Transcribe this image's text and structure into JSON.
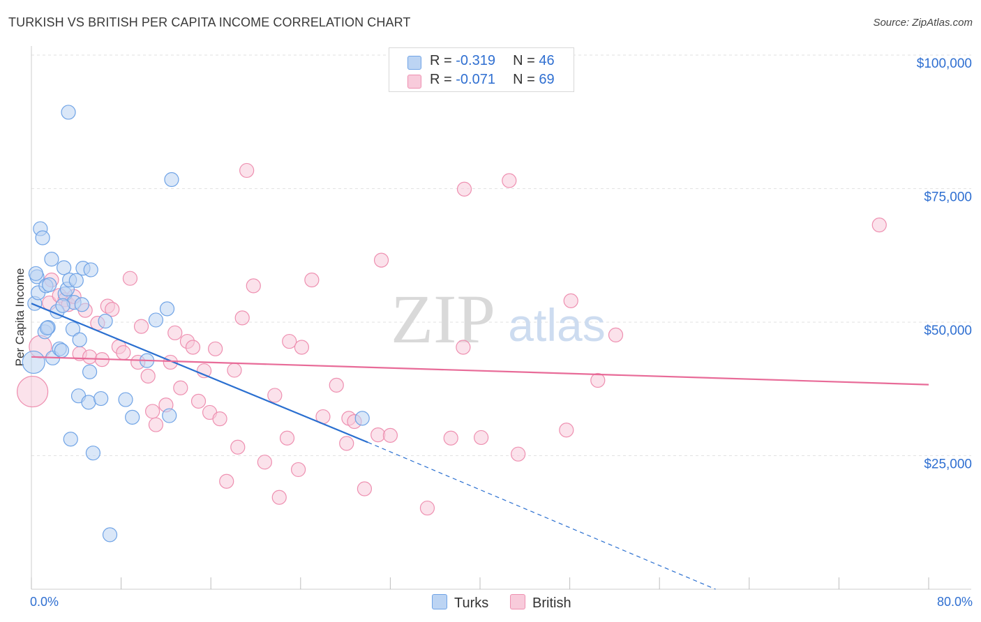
{
  "title": "TURKISH VS BRITISH PER CAPITA INCOME CORRELATION CHART",
  "source": "Source: ZipAtlas.com",
  "watermark": {
    "zip": "ZIP",
    "atlas": "atlas"
  },
  "colors": {
    "turks": "#6fa3e6",
    "turks_fill": "#bcd4f3",
    "turks_line": "#2a6fd0",
    "british": "#ee8fb0",
    "british_fill": "#f8cbdb",
    "british_line": "#e86b98",
    "axis_label": "#2f6fd1"
  },
  "legend": {
    "turks": {
      "r_label": "R = ",
      "r_value": "-0.319",
      "n_label": "N = ",
      "n_value": "46"
    },
    "british": {
      "r_label": "R = ",
      "r_value": "-0.071",
      "n_label": "N = ",
      "n_value": "69"
    }
  },
  "bottom_legend": {
    "turks": "Turks",
    "british": "British"
  },
  "chart_data": {
    "type": "scatter",
    "title": "TURKISH VS BRITISH PER CAPITA INCOME CORRELATION CHART",
    "xlabel": "",
    "ylabel": "Per Capita Income",
    "xlim": [
      0,
      80
    ],
    "ylim": [
      0,
      105000
    ],
    "x_tick_labels": [
      "0.0%",
      "80.0%"
    ],
    "y_ticks": [
      25000,
      50000,
      75000,
      100000
    ],
    "y_tick_labels": [
      "$25,000",
      "$50,000",
      "$75,000",
      "$100,000"
    ],
    "series": [
      {
        "name": "Turks",
        "r": -0.319,
        "n": 46,
        "trend": {
          "x0": 0,
          "y0": 53500,
          "x1": 30,
          "y1": 27500,
          "dash_to_x": 61,
          "dash_to_y": 0
        },
        "points": [
          [
            0.2,
            42500,
            16
          ],
          [
            0.3,
            53500,
            10
          ],
          [
            0.5,
            58500,
            10
          ],
          [
            0.6,
            55500,
            10
          ],
          [
            0.8,
            67500,
            10
          ],
          [
            1.0,
            65800,
            10
          ],
          [
            1.2,
            48200,
            10
          ],
          [
            1.3,
            56800,
            10
          ],
          [
            1.5,
            49000,
            10
          ],
          [
            1.6,
            57000,
            10
          ],
          [
            1.8,
            61800,
            10
          ],
          [
            1.9,
            43300,
            10
          ],
          [
            2.3,
            52000,
            10
          ],
          [
            2.5,
            45000,
            10
          ],
          [
            2.7,
            44700,
            10
          ],
          [
            2.9,
            60200,
            10
          ],
          [
            3.0,
            55300,
            10
          ],
          [
            3.2,
            56200,
            10
          ],
          [
            3.3,
            89300,
            10
          ],
          [
            3.4,
            57900,
            10
          ],
          [
            3.5,
            28100,
            10
          ],
          [
            3.7,
            48700,
            10
          ],
          [
            3.8,
            53700,
            10
          ],
          [
            4.0,
            57800,
            10
          ],
          [
            4.2,
            36200,
            10
          ],
          [
            4.3,
            46700,
            10
          ],
          [
            4.5,
            53300,
            10
          ],
          [
            4.6,
            60100,
            10
          ],
          [
            5.1,
            35000,
            10
          ],
          [
            5.2,
            40700,
            10
          ],
          [
            5.3,
            59800,
            10
          ],
          [
            5.5,
            25500,
            10
          ],
          [
            6.2,
            35700,
            10
          ],
          [
            6.6,
            50200,
            10
          ],
          [
            7.0,
            10200,
            10
          ],
          [
            8.4,
            35500,
            10
          ],
          [
            9.0,
            32200,
            10
          ],
          [
            10.3,
            42800,
            10
          ],
          [
            11.1,
            50400,
            10
          ],
          [
            12.1,
            52500,
            10
          ],
          [
            12.3,
            32500,
            10
          ],
          [
            12.5,
            76700,
            10
          ],
          [
            29.5,
            32000,
            10
          ],
          [
            0.4,
            59100,
            10
          ],
          [
            1.4,
            48900,
            10
          ],
          [
            2.8,
            53100,
            10
          ]
        ]
      },
      {
        "name": "British",
        "r": -0.071,
        "n": 69,
        "trend": {
          "x0": 0,
          "y0": 43500,
          "x1": 80,
          "y1": 38300
        },
        "points": [
          [
            0.1,
            37000,
            22
          ],
          [
            0.8,
            45400,
            16
          ],
          [
            1.6,
            53600,
            10
          ],
          [
            1.8,
            57900,
            10
          ],
          [
            2.5,
            55000,
            10
          ],
          [
            3.0,
            54200,
            10
          ],
          [
            3.3,
            53300,
            10
          ],
          [
            3.8,
            54800,
            10
          ],
          [
            4.3,
            44100,
            10
          ],
          [
            4.8,
            52200,
            10
          ],
          [
            5.2,
            43500,
            10
          ],
          [
            5.9,
            49800,
            10
          ],
          [
            6.3,
            43000,
            10
          ],
          [
            6.8,
            53000,
            10
          ],
          [
            7.2,
            52400,
            10
          ],
          [
            7.8,
            45400,
            10
          ],
          [
            8.2,
            44300,
            10
          ],
          [
            8.8,
            58200,
            10
          ],
          [
            9.5,
            42500,
            10
          ],
          [
            9.8,
            49200,
            10
          ],
          [
            10.4,
            39900,
            10
          ],
          [
            10.8,
            33300,
            10
          ],
          [
            11.1,
            30800,
            10
          ],
          [
            12.0,
            34500,
            10
          ],
          [
            12.4,
            42500,
            10
          ],
          [
            12.8,
            48000,
            10
          ],
          [
            13.3,
            37700,
            10
          ],
          [
            13.9,
            46400,
            10
          ],
          [
            14.4,
            45300,
            10
          ],
          [
            14.9,
            35200,
            10
          ],
          [
            15.4,
            40900,
            10
          ],
          [
            15.9,
            33100,
            10
          ],
          [
            16.4,
            45000,
            10
          ],
          [
            16.8,
            31900,
            10
          ],
          [
            17.4,
            20200,
            10
          ],
          [
            18.1,
            41000,
            10
          ],
          [
            18.4,
            26600,
            10
          ],
          [
            18.8,
            50800,
            10
          ],
          [
            19.2,
            78400,
            10
          ],
          [
            19.8,
            56800,
            10
          ],
          [
            20.8,
            23800,
            10
          ],
          [
            21.7,
            36300,
            10
          ],
          [
            22.1,
            17200,
            10
          ],
          [
            22.8,
            28300,
            10
          ],
          [
            23.0,
            46400,
            10
          ],
          [
            23.8,
            22400,
            10
          ],
          [
            24.1,
            45300,
            10
          ],
          [
            25.0,
            57900,
            10
          ],
          [
            26.0,
            32300,
            10
          ],
          [
            27.2,
            38200,
            10
          ],
          [
            28.1,
            27300,
            10
          ],
          [
            28.3,
            32000,
            10
          ],
          [
            28.8,
            31400,
            10
          ],
          [
            29.7,
            18800,
            10
          ],
          [
            30.9,
            28900,
            10
          ],
          [
            31.2,
            61600,
            10
          ],
          [
            32.0,
            28800,
            10
          ],
          [
            35.3,
            15200,
            10
          ],
          [
            37.4,
            28300,
            10
          ],
          [
            38.5,
            45300,
            10
          ],
          [
            38.6,
            74900,
            10
          ],
          [
            40.1,
            28400,
            10
          ],
          [
            42.6,
            76500,
            10
          ],
          [
            43.4,
            25300,
            10
          ],
          [
            47.7,
            29800,
            10
          ],
          [
            48.1,
            54000,
            10
          ],
          [
            50.5,
            39100,
            10
          ],
          [
            52.1,
            47600,
            10
          ],
          [
            75.6,
            68200,
            10
          ]
        ]
      }
    ]
  }
}
